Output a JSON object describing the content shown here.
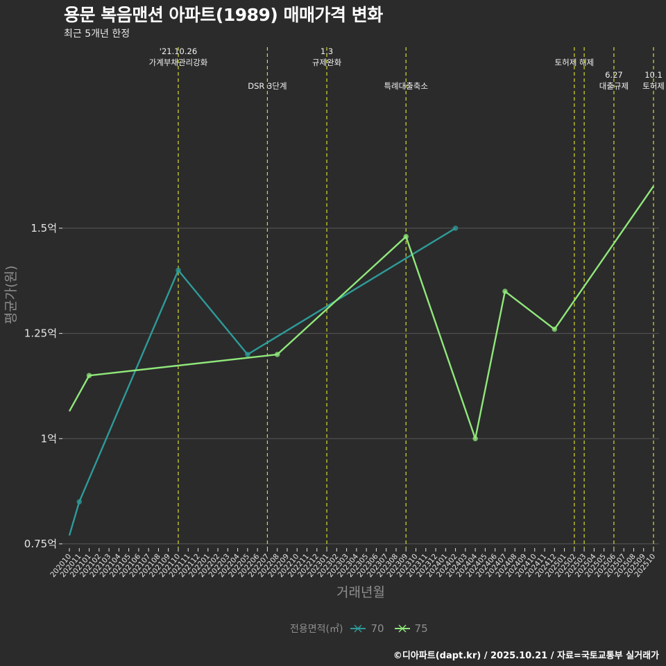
{
  "title": "용문 복음맨션 아파트(1989) 매매가격 변화",
  "subtitle": "최근 5개년 한정",
  "caption": "©디아파트(dapt.kr) / 2025.10.21 / 자료=국토교통부 실거래가",
  "legend": {
    "title": "전용면적(㎡)",
    "items": [
      "70",
      "75"
    ]
  },
  "colors": {
    "background": "#2b2b2c",
    "grid": "#585858",
    "axis_text": "#e6e6e6",
    "axis_title": "#8f8f8f",
    "event_line": "#d8dc2a",
    "series_70": "#2e9b98",
    "series_75": "#90e87a"
  },
  "chart_data": {
    "type": "line",
    "title": "용문 복음맨션 아파트(1989) 매매가격 변화",
    "subtitle": "최근 5개년 한정",
    "xlabel": "거래년월",
    "ylabel": "평균가(원)",
    "categories": [
      "202010",
      "202011",
      "202101",
      "202102",
      "202103",
      "202104",
      "202105",
      "202106",
      "202107",
      "202108",
      "202109",
      "202110",
      "202111",
      "202112",
      "202201",
      "202202",
      "202203",
      "202204",
      "202205",
      "202206",
      "202207",
      "202208",
      "202209",
      "202210",
      "202211",
      "202212",
      "202301",
      "202302",
      "202303",
      "202304",
      "202305",
      "202306",
      "202307",
      "202308",
      "202309",
      "202310",
      "202311",
      "202312",
      "202401",
      "202402",
      "202403",
      "202404",
      "202405",
      "202406",
      "202407",
      "202408",
      "202409",
      "202410",
      "202411",
      "202412",
      "202501",
      "202502",
      "202503",
      "202504",
      "202505",
      "202506",
      "202507",
      "202508",
      "202509",
      "202510"
    ],
    "yticks": [
      0.75,
      1.0,
      1.25,
      1.5
    ],
    "ytick_labels": [
      "0.75억",
      "1억",
      "1.25억",
      "1.5억"
    ],
    "ylim": [
      0.74,
      1.94
    ],
    "series": [
      {
        "name": "70",
        "points": [
          {
            "x": "202010",
            "y": 0.77,
            "marker": false
          },
          {
            "x": "202011",
            "y": 0.85,
            "marker": true
          },
          {
            "x": "202110",
            "y": 1.4,
            "marker": true
          },
          {
            "x": "202205",
            "y": 1.2,
            "marker": true
          },
          {
            "x": "202402",
            "y": 1.5,
            "marker": true
          }
        ]
      },
      {
        "name": "75",
        "points": [
          {
            "x": "202010",
            "y": 1.065,
            "marker": false
          },
          {
            "x": "202101",
            "y": 1.15,
            "marker": true
          },
          {
            "x": "202208",
            "y": 1.2,
            "marker": true
          },
          {
            "x": "202309",
            "y": 1.48,
            "marker": true
          },
          {
            "x": "202404",
            "y": 1.0,
            "marker": true
          },
          {
            "x": "202407",
            "y": 1.35,
            "marker": true
          },
          {
            "x": "202412",
            "y": 1.26,
            "marker": true
          },
          {
            "x": "202510",
            "y": 1.6,
            "marker": false
          }
        ]
      }
    ],
    "events": [
      {
        "x": "202110",
        "label": "'21.10.26 가계부채관리강화",
        "lines": [
          "'21.10.26",
          "가계부채관리강화"
        ],
        "row": 0
      },
      {
        "x": "202207",
        "label": "DSR 3단계",
        "lines": [
          "DSR 3단계"
        ],
        "row": 1
      },
      {
        "x": "202301",
        "label": "1.3 규제완화",
        "lines": [
          "1.3",
          "규제완화"
        ],
        "row": 0
      },
      {
        "x": "202309",
        "label": "특례대출축소",
        "lines": [
          "특례대출축소"
        ],
        "row": 1
      },
      {
        "x": "202502",
        "label": "토허제 해제",
        "lines": [
          "토허제 해제"
        ],
        "row": 0
      },
      {
        "x": "202503",
        "label": "",
        "lines": [],
        "row": 0
      },
      {
        "x": "202506",
        "label": "6.27 대출규제",
        "lines": [
          "6.27",
          "대출규제"
        ],
        "row": 1
      },
      {
        "x": "202510",
        "label": "10.1 토허제",
        "lines": [
          "10.1",
          "토허제"
        ],
        "row": 1
      }
    ]
  }
}
